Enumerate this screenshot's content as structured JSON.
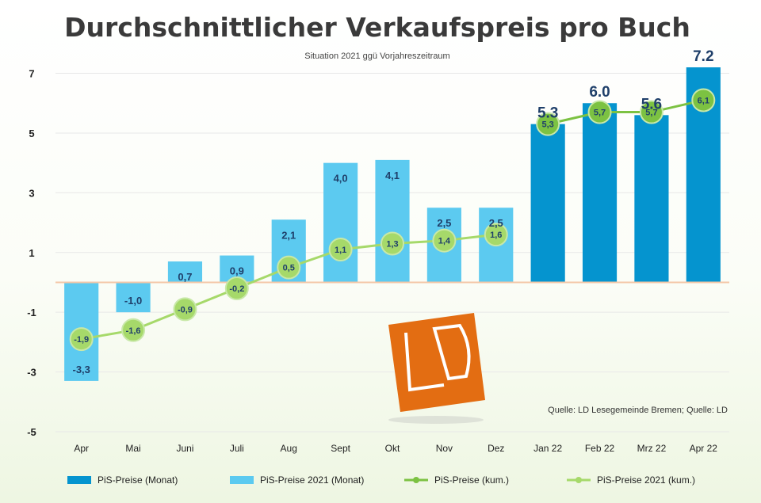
{
  "chart_data": {
    "type": "bar",
    "title": "Durchschnittlicher Verkaufspreis pro Buch",
    "subtitle": "Situation 2021 ggü Vorjahreszeitraum",
    "source": "Quelle: LD Lesegemeinde Bremen; Quelle: LD",
    "categories": [
      "Apr",
      "Mai",
      "Juni",
      "Juli",
      "Aug",
      "Sept",
      "Okt",
      "Nov",
      "Dez",
      "Jan 22",
      "Feb 22",
      "Mrz 22",
      "Apr 22"
    ],
    "y_ticks": [
      -5,
      -3,
      -1,
      1,
      3,
      5,
      7
    ],
    "ylim": [
      -5,
      7.2
    ],
    "grid": true,
    "legend_position": "bottom",
    "series": [
      {
        "name": "PiS-Preise (Monat)",
        "kind": "bar",
        "color": "#0594cf",
        "values": [
          null,
          null,
          null,
          null,
          null,
          null,
          null,
          null,
          null,
          5.3,
          6.0,
          5.6,
          7.2
        ],
        "labels": [
          "",
          "",
          "",
          "",
          "",
          "",
          "",
          "",
          "",
          "5.3",
          "6.0",
          "5.6",
          "7.2"
        ]
      },
      {
        "name": "PiS-Preise 2021 (Monat)",
        "kind": "bar",
        "color": "#5ccaf0",
        "values": [
          -3.3,
          -1.0,
          0.7,
          0.9,
          2.1,
          4.0,
          4.1,
          2.5,
          2.5,
          null,
          null,
          null,
          null
        ],
        "labels": [
          "-3,3",
          "-1,0",
          "0,7",
          "0,9",
          "2,1",
          "4,0",
          "4,1",
          "2,5",
          "2,5",
          "",
          "",
          "",
          ""
        ]
      },
      {
        "name": "PiS-Preise (kum.)",
        "kind": "line",
        "color": "#7cc242",
        "values": [
          null,
          null,
          null,
          null,
          null,
          null,
          null,
          null,
          null,
          5.3,
          5.7,
          5.7,
          6.1
        ],
        "labels": [
          "",
          "",
          "",
          "",
          "",
          "",
          "",
          "",
          "",
          "5,3",
          "5,7",
          "5,7",
          "6,1"
        ]
      },
      {
        "name": "PiS-Preise 2021 (kum.)",
        "kind": "line",
        "color": "#a6d96a",
        "values": [
          -1.9,
          -1.6,
          -0.9,
          -0.2,
          0.5,
          1.1,
          1.3,
          1.4,
          1.6,
          null,
          null,
          null,
          null
        ],
        "labels": [
          "-1,9",
          "-1,6",
          "-0,9",
          "-0,2",
          "0,5",
          "1,1",
          "1,3",
          "1,4",
          "1,6",
          "",
          "",
          "",
          ""
        ]
      }
    ]
  },
  "logo": {
    "text": "LD",
    "color": "#e36d12"
  }
}
